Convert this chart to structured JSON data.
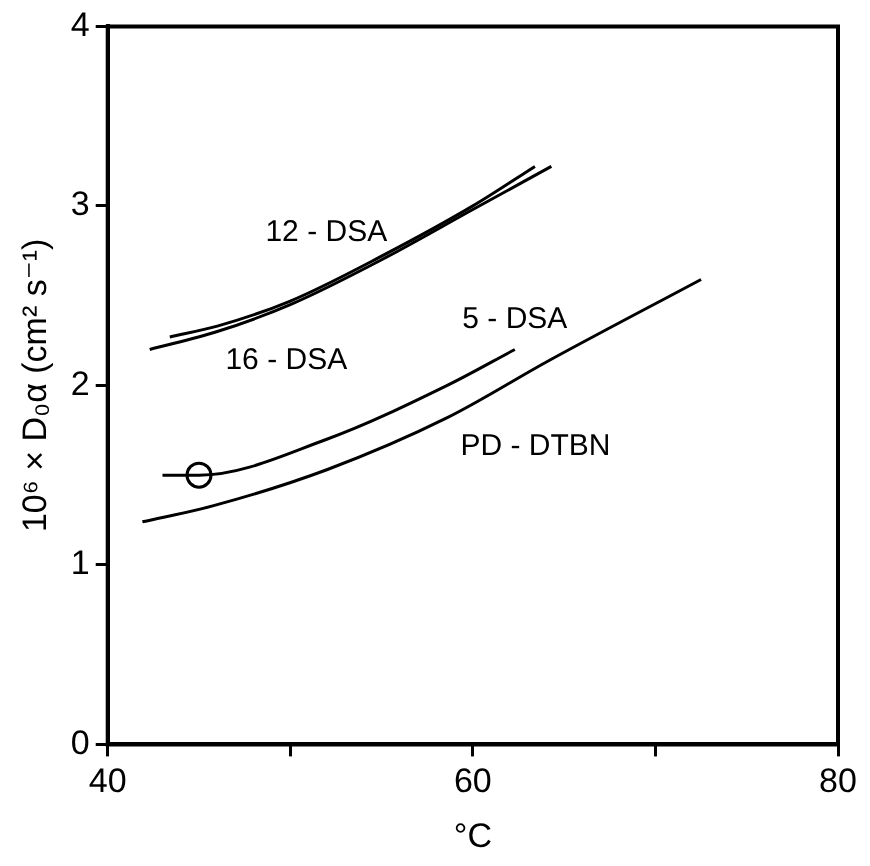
{
  "chart_data": {
    "type": "line",
    "xlabel": "°C",
    "ylabel": "10⁶ × D₀α (cm² s⁻¹)",
    "xlim": [
      40,
      80
    ],
    "xticks": [
      40,
      {
        "value": 50,
        "label": null
      },
      60,
      {
        "value": 70,
        "label": null
      },
      80
    ],
    "ylim": [
      0,
      4
    ],
    "yticks": [
      0,
      1,
      2,
      3,
      4
    ],
    "marker": "none",
    "line_style": "solid",
    "series": [
      {
        "name": "12 - DSA",
        "color": "#000000",
        "x": [
          43.4,
          46,
          50,
          55,
          60,
          63.4
        ],
        "values": [
          2.27,
          2.33,
          2.47,
          2.72,
          3.0,
          3.22
        ]
      },
      {
        "name": "16 - DSA",
        "color": "#000000",
        "x": [
          42.3,
          46,
          50,
          55,
          60,
          64.3
        ],
        "values": [
          2.2,
          2.3,
          2.45,
          2.7,
          2.98,
          3.22
        ]
      },
      {
        "name": "5 - DSA",
        "color": "#000000",
        "x": [
          43,
          45,
          52,
          58.6,
          62.3
        ],
        "values": [
          1.5,
          1.5,
          1.7,
          2.0,
          2.2
        ]
      },
      {
        "name": "PD - DTBN",
        "color": "#000000",
        "x": [
          41.9,
          45.8,
          52,
          58.6,
          64.2,
          72.5
        ],
        "values": [
          1.24,
          1.33,
          1.53,
          1.82,
          2.14,
          2.59
        ]
      },
      {
        "type": "scatter",
        "marker": "circle",
        "color": "#000000",
        "x": [
          45
        ],
        "values": [
          1.5
        ]
      }
    ]
  }
}
